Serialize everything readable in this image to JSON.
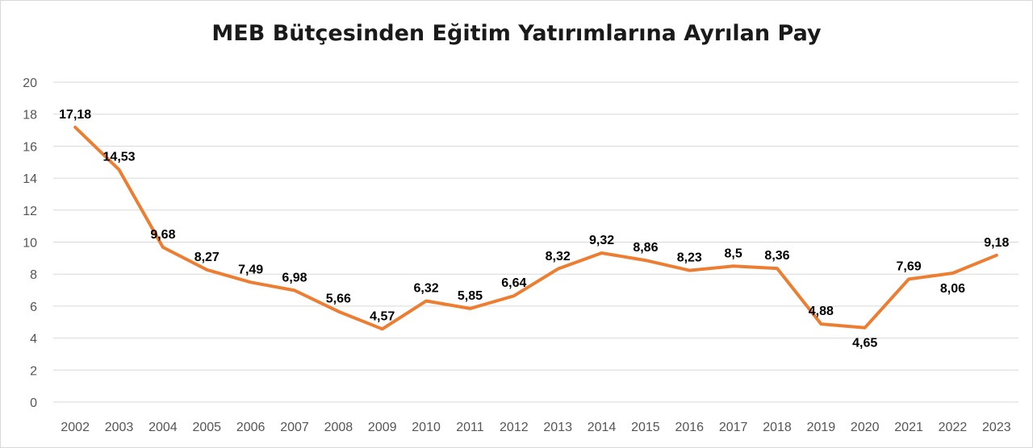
{
  "chart_data": {
    "type": "line",
    "title": "MEB Bütçesinden Eğitim Yatırımlarına Ayrılan Pay",
    "xlabel": "",
    "ylabel": "",
    "ylim": [
      0,
      20
    ],
    "yticks": [
      0,
      2,
      4,
      6,
      8,
      10,
      12,
      14,
      16,
      18,
      20
    ],
    "grid": true,
    "categories": [
      "2002",
      "2003",
      "2004",
      "2005",
      "2006",
      "2007",
      "2008",
      "2009",
      "2010",
      "2011",
      "2012",
      "2013",
      "2014",
      "2015",
      "2016",
      "2017",
      "2018",
      "2019",
      "2020",
      "2021",
      "2022",
      "2023"
    ],
    "series": [
      {
        "name": "Pay",
        "color": "#ed7d31",
        "values": [
          17.18,
          14.53,
          9.68,
          8.27,
          7.49,
          6.98,
          5.66,
          4.57,
          6.32,
          5.85,
          6.64,
          8.32,
          9.32,
          8.86,
          8.23,
          8.5,
          8.36,
          4.88,
          4.65,
          7.69,
          8.06,
          9.18
        ],
        "labels": [
          "17,18",
          "14,53",
          "9,68",
          "8,27",
          "7,49",
          "6,98",
          "5,66",
          "4,57",
          "6,32",
          "5,85",
          "6,64",
          "8,32",
          "9,32",
          "8,86",
          "8,23",
          "8,5",
          "8,36",
          "4,88",
          "4,65",
          "7,69",
          "8,06",
          "9,18"
        ],
        "label_positions": [
          "above",
          "above",
          "above",
          "above",
          "above",
          "above",
          "above",
          "above",
          "above",
          "above",
          "above",
          "above",
          "above",
          "above",
          "above",
          "above",
          "above",
          "above",
          "below",
          "above",
          "below",
          "above"
        ]
      }
    ]
  },
  "colors": {
    "gridline": "#d9d9d9",
    "line": "#ed7d31",
    "axis_text": "#555555"
  }
}
